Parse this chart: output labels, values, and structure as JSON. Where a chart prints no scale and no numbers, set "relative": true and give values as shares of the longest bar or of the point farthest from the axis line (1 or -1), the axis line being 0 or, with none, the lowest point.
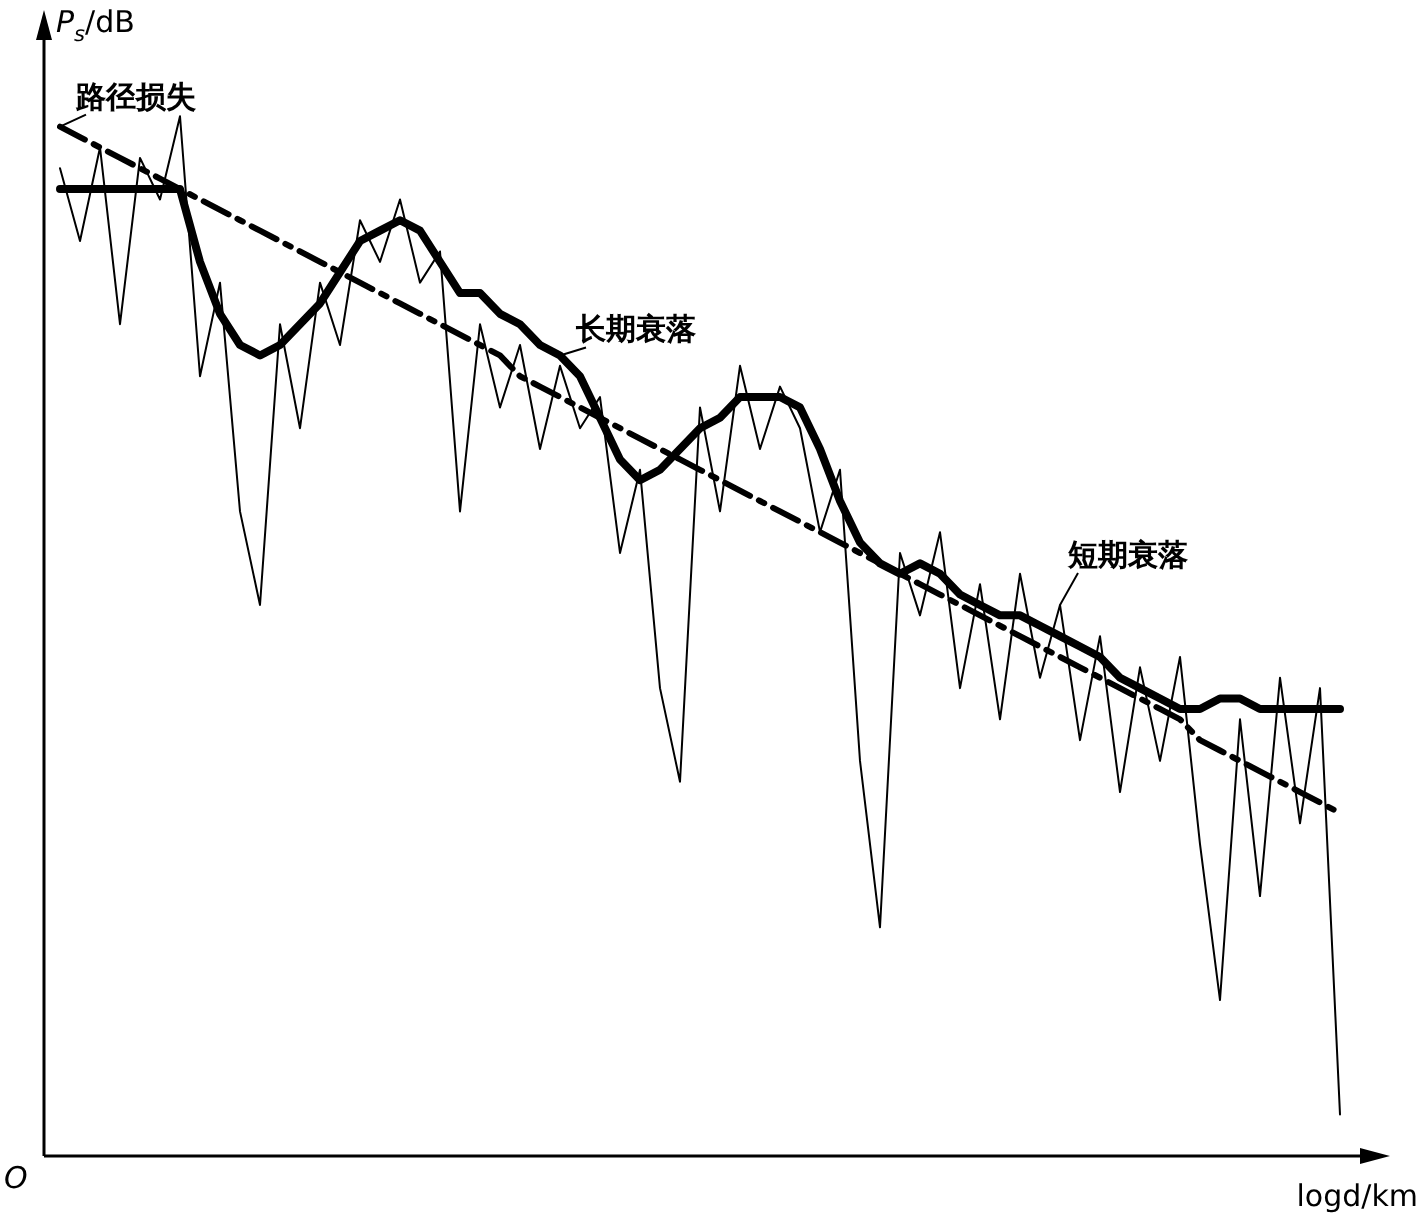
{
  "chart_data": {
    "type": "line",
    "relative": true,
    "xlabel": "logd/km",
    "ylabel": "P$_{s}$/dB",
    "annotations": [
      "O"
    ],
    "legend": false,
    "marker": "none",
    "categories": [
      null,
      null,
      null,
      null,
      null,
      null,
      null,
      null,
      null,
      null,
      null,
      null,
      null,
      null,
      null,
      null,
      null,
      null,
      null,
      null,
      null,
      null,
      null,
      null,
      null,
      null,
      null,
      null,
      null,
      null,
      null,
      null,
      null,
      null,
      null,
      null,
      null,
      null,
      null,
      null,
      null,
      null,
      null,
      null,
      null,
      null,
      null,
      null,
      null,
      null,
      null,
      null,
      null,
      null,
      null,
      null,
      null,
      null,
      null,
      null,
      null,
      null,
      null,
      null,
      null
    ],
    "series": [
      {
        "name": "路径损失",
        "color": "#000000",
        "line_style": "dashed",
        "values": [
          0.99,
          0.98,
          0.97,
          0.96,
          0.95,
          0.94,
          0.93,
          0.92,
          0.91,
          0.9,
          0.89,
          0.88,
          0.87,
          0.86,
          0.85,
          0.84,
          0.83,
          0.82,
          0.81,
          0.8,
          0.79,
          0.78,
          0.77,
          0.75,
          0.74,
          0.73,
          0.72,
          0.71,
          0.7,
          0.69,
          0.68,
          0.67,
          0.66,
          0.65,
          0.64,
          0.63,
          0.62,
          0.61,
          0.6,
          0.59,
          0.58,
          0.57,
          0.56,
          0.55,
          0.54,
          0.53,
          0.52,
          0.51,
          0.5,
          0.49,
          0.48,
          0.47,
          0.46,
          0.45,
          0.44,
          0.43,
          0.42,
          0.4,
          0.39,
          0.38,
          0.37,
          0.36,
          0.35,
          0.34,
          0.33
        ]
      },
      {
        "name": "长期衰落",
        "color": "#000000",
        "line_style": "solid",
        "values": [
          0.93,
          0.93,
          0.93,
          0.93,
          0.93,
          0.93,
          0.93,
          0.86,
          0.81,
          0.78,
          0.77,
          0.78,
          0.8,
          0.82,
          0.85,
          0.88,
          0.89,
          0.9,
          0.89,
          0.86,
          0.83,
          0.83,
          0.81,
          0.8,
          0.78,
          0.77,
          0.75,
          0.71,
          0.67,
          0.65,
          0.66,
          0.68,
          0.7,
          0.71,
          0.73,
          0.73,
          0.73,
          0.72,
          0.68,
          0.63,
          0.59,
          0.57,
          0.56,
          0.57,
          0.56,
          0.54,
          0.53,
          0.52,
          0.52,
          0.51,
          0.5,
          0.49,
          0.48,
          0.46,
          0.45,
          0.44,
          0.43,
          0.43,
          0.44,
          0.44,
          0.43,
          0.43,
          0.43,
          0.43,
          0.43
        ]
      },
      {
        "name": "短期衰落",
        "color": "#000000",
        "line_style": "solid",
        "values": [
          0.95,
          0.88,
          0.97,
          0.8,
          0.96,
          0.92,
          1.0,
          0.75,
          0.84,
          0.62,
          0.53,
          0.8,
          0.7,
          0.84,
          0.78,
          0.9,
          0.86,
          0.92,
          0.84,
          0.87,
          0.62,
          0.8,
          0.72,
          0.78,
          0.68,
          0.76,
          0.7,
          0.73,
          0.58,
          0.66,
          0.45,
          0.36,
          0.72,
          0.62,
          0.76,
          0.68,
          0.74,
          0.7,
          0.6,
          0.66,
          0.38,
          0.22,
          0.58,
          0.52,
          0.6,
          0.45,
          0.55,
          0.42,
          0.56,
          0.46,
          0.53,
          0.4,
          0.5,
          0.35,
          0.47,
          0.38,
          0.48,
          0.3,
          0.15,
          0.42,
          0.25,
          0.46,
          0.32,
          0.45,
          0.04
        ]
      }
    ]
  }
}
